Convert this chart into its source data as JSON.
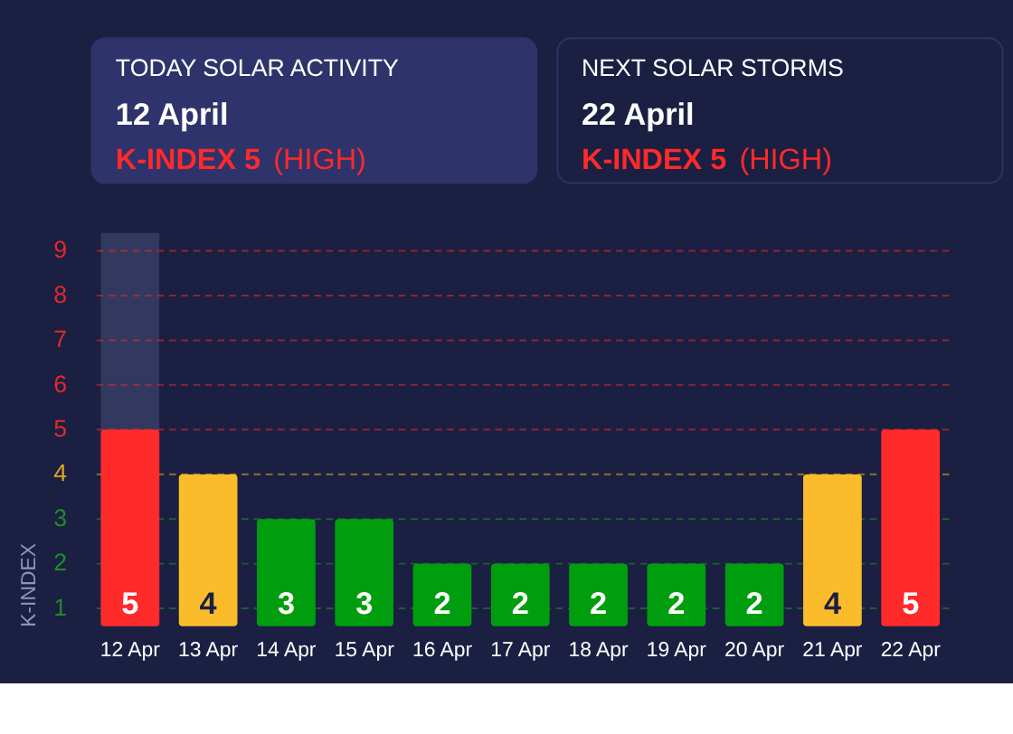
{
  "chart_data": [
    {
      "type": "other",
      "title": "TODAY SOLAR ACTIVITY",
      "subtitle": "12 April",
      "annotations": [
        "K-INDEX 5",
        "(HIGH)"
      ],
      "color": "#2e336b"
    },
    {
      "type": "other",
      "title": "NEXT SOLAR STORMS",
      "subtitle": "22 April",
      "annotations": [
        "K-INDEX 5",
        "(HIGH)"
      ],
      "color": "#1b1f42"
    },
    {
      "type": "bar",
      "categories": [
        "12 Apr",
        "13 Apr",
        "14 Apr",
        "15 Apr",
        "16 Apr",
        "17 Apr",
        "18 Apr",
        "19 Apr",
        "20 Apr",
        "21 Apr",
        "22 Apr"
      ],
      "values": [
        5,
        4,
        3,
        3,
        2,
        2,
        2,
        2,
        2,
        4,
        5
      ],
      "colors": [
        "#ff2a2a",
        "#fbbc2c",
        "#009e0f",
        "#009e0f",
        "#009e0f",
        "#009e0f",
        "#009e0f",
        "#009e0f",
        "#009e0f",
        "#fbbc2c",
        "#ff2a2a"
      ],
      "data_labels": true,
      "ylabel": "K-INDEX",
      "ylim": [
        0.6,
        9.4
      ],
      "yticks": [
        1,
        2,
        3,
        4,
        5,
        6,
        7,
        8,
        9
      ],
      "ref_lines": [
        {
          "axis": "y",
          "value": 1,
          "color": "#1e8c2a",
          "line_style": "dashed"
        },
        {
          "axis": "y",
          "value": 2,
          "color": "#1e8c2a",
          "line_style": "dashed"
        },
        {
          "axis": "y",
          "value": 3,
          "color": "#1e8c2a",
          "line_style": "dashed"
        },
        {
          "axis": "y",
          "value": 4,
          "color": "#e0a81e",
          "line_style": "dashed"
        },
        {
          "axis": "y",
          "value": 5,
          "color": "#e02a2a",
          "line_style": "dashed"
        },
        {
          "axis": "y",
          "value": 6,
          "color": "#e02a2a",
          "line_style": "dashed"
        },
        {
          "axis": "y",
          "value": 7,
          "color": "#e02a2a",
          "line_style": "dashed"
        },
        {
          "axis": "y",
          "value": 8,
          "color": "#e02a2a",
          "line_style": "dashed"
        },
        {
          "axis": "y",
          "value": 9,
          "color": "#e02a2a",
          "line_style": "dashed"
        }
      ],
      "bands": [
        {
          "axis": "x",
          "from": "12 Apr",
          "to": "12 Apr",
          "color": "#3a3f66"
        }
      ]
    }
  ]
}
